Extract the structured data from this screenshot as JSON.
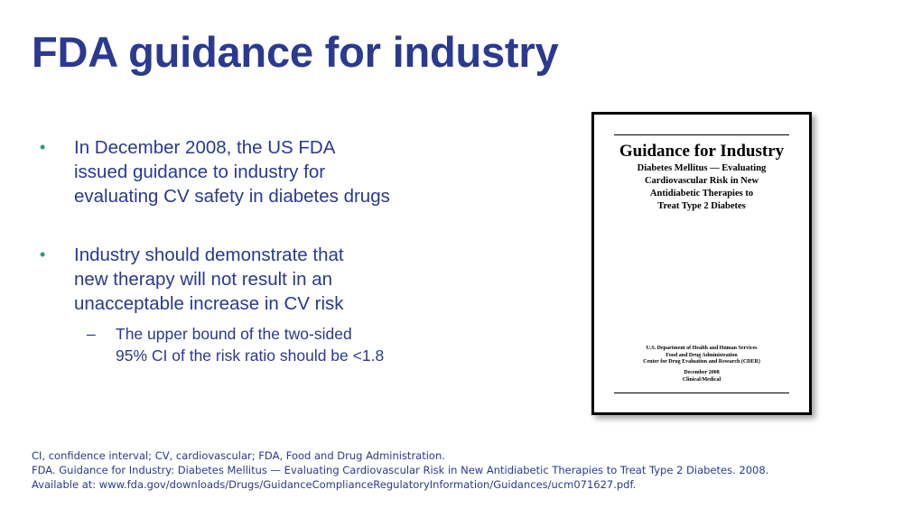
{
  "slide": {
    "title": "FDA guidance for industry"
  },
  "bullets": [
    {
      "marker": "•",
      "lines": [
        "In December 2008, the US FDA",
        "issued guidance to industry for",
        "evaluating CV safety in diabetes drugs"
      ]
    },
    {
      "marker": "•",
      "lines": [
        "Industry should demonstrate that",
        "new therapy will not result in an",
        "unacceptable increase in CV risk"
      ],
      "sub": {
        "marker": "–",
        "lines": [
          "The upper bound of the two-sided",
          "95% CI of the risk ratio should be <1.8"
        ]
      }
    }
  ],
  "document_cover": {
    "title": "Guidance for Industry",
    "subtitle_lines": [
      "Diabetes Mellitus — Evaluating",
      "Cardiovascular Risk in New",
      "Antidiabetic Therapies to",
      "Treat Type 2 Diabetes"
    ],
    "agency_lines": [
      "U.S. Department of Health and Human Services",
      "Food and Drug Administration",
      "Center for Drug Evaluation and Research (CDER)"
    ],
    "date_lines": [
      "December 2008",
      "Clinical/Medical"
    ]
  },
  "footnotes": [
    "CI, confidence interval; CV, cardiovascular; FDA, Food and Drug Administration.",
    "FDA. Guidance for Industry: Diabetes Mellitus — Evaluating Cardiovascular Risk in New Antidiabetic Therapies to Treat Type 2 Diabetes. 2008.",
    "Available at: www.fda.gov/downloads/Drugs/GuidanceComplianceRegulatoryInformation/Guidances/ucm071627.pdf."
  ]
}
